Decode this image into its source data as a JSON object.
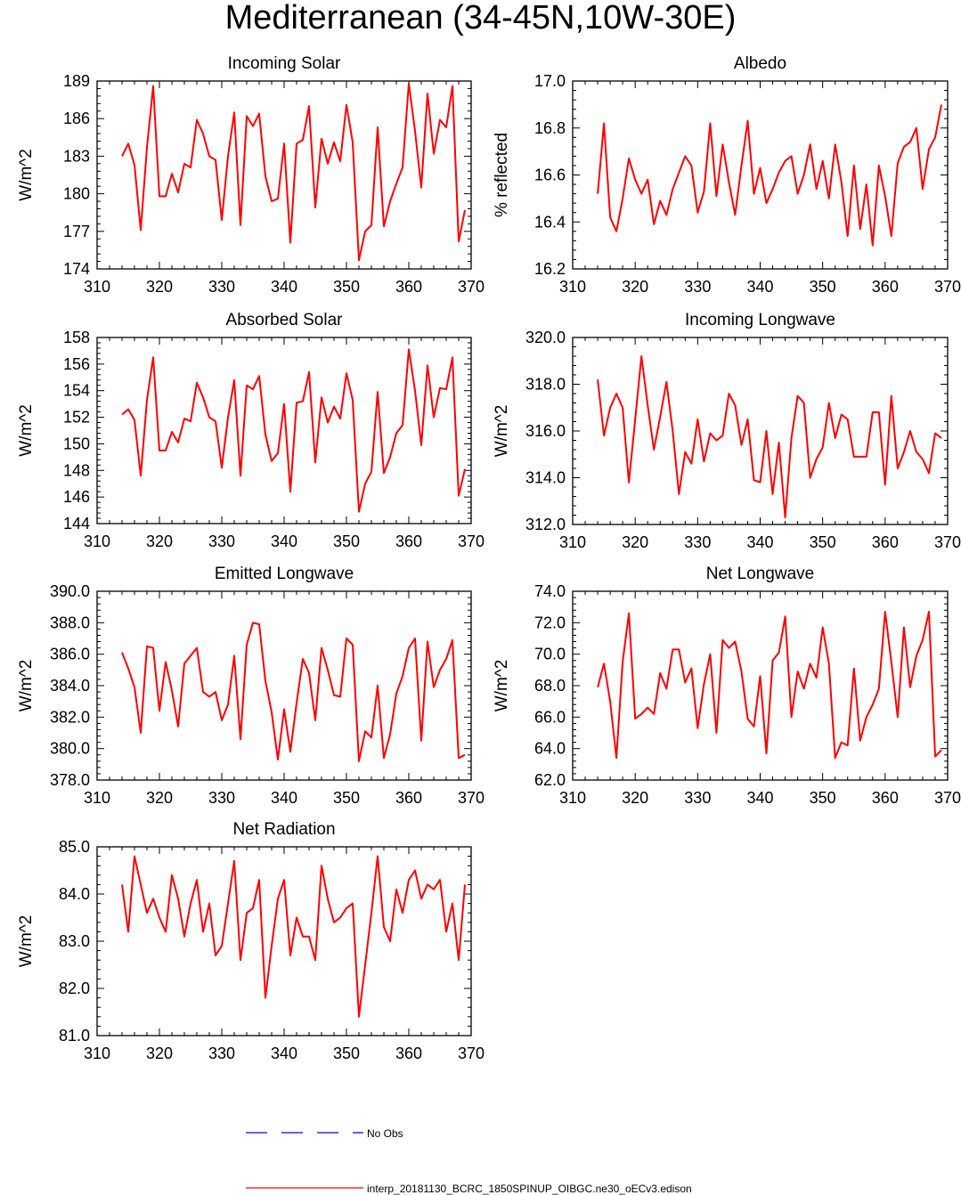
{
  "title": "Mediterranean (34-45N,10W-30E)",
  "colors": {
    "model": "#ff0000",
    "obs": "#0000ff",
    "axis": "#000000"
  },
  "legend": {
    "obs_label": "No Obs",
    "model_label": "interp_20181130_BCRC_1850SPINUP_OIBGC.ne30_oECv3.edison"
  },
  "chart_data": [
    {
      "type": "line",
      "title": "Incoming Solar",
      "xlabel": "",
      "ylabel": "W/m^2",
      "xlim": [
        310,
        370
      ],
      "ylim": [
        174,
        189
      ],
      "xticks": [
        310,
        320,
        330,
        340,
        350,
        360,
        370
      ],
      "xtick_labels": [
        "310",
        "320",
        "330",
        "340",
        "350",
        "360",
        "370"
      ],
      "yticks": [
        174,
        177,
        180,
        183,
        186,
        189
      ],
      "ytick_labels": [
        "174",
        "177",
        "180",
        "183",
        "186",
        "189"
      ],
      "series": [
        {
          "x_start": 314,
          "x_step": 1,
          "values": [
            183.0,
            184.0,
            182.3,
            177.1,
            183.7,
            188.6,
            179.8,
            179.8,
            181.6,
            180.1,
            182.4,
            182.1,
            185.9,
            184.8,
            183.0,
            182.7,
            177.9,
            183.0,
            186.5,
            177.5,
            186.2,
            185.4,
            186.4,
            181.4,
            179.4,
            179.6,
            184.0,
            176.1,
            184.0,
            184.3,
            187.0,
            178.9,
            184.4,
            182.4,
            184.1,
            182.6,
            187.1,
            184.1,
            174.7,
            177.0,
            177.5,
            185.3,
            177.4,
            179.4,
            180.8,
            182.1,
            188.8,
            185.0,
            180.5,
            188.0,
            183.2,
            185.9,
            185.3,
            188.6,
            176.2,
            178.7
          ]
        }
      ]
    },
    {
      "type": "line",
      "title": "Albedo",
      "xlabel": "",
      "ylabel": "% reflected",
      "xlim": [
        310,
        370
      ],
      "ylim": [
        16.2,
        17.0
      ],
      "xticks": [
        310,
        320,
        330,
        340,
        350,
        360,
        370
      ],
      "xtick_labels": [
        "310",
        "320",
        "330",
        "340",
        "350",
        "360",
        "370"
      ],
      "yticks": [
        16.2,
        16.4,
        16.6,
        16.8,
        17.0
      ],
      "ytick_labels": [
        "16.2",
        "16.4",
        "16.6",
        "16.8",
        "17.0"
      ],
      "series": [
        {
          "x_start": 314,
          "x_step": 1,
          "values": [
            16.52,
            16.82,
            16.42,
            16.36,
            16.5,
            16.67,
            16.58,
            16.52,
            16.58,
            16.39,
            16.49,
            16.43,
            16.54,
            16.61,
            16.68,
            16.64,
            16.44,
            16.53,
            16.82,
            16.51,
            16.73,
            16.57,
            16.43,
            16.64,
            16.83,
            16.52,
            16.63,
            16.48,
            16.54,
            16.61,
            16.66,
            16.68,
            16.52,
            16.6,
            16.73,
            16.54,
            16.66,
            16.5,
            16.73,
            16.57,
            16.34,
            16.64,
            16.37,
            16.56,
            16.3,
            16.64,
            16.51,
            16.34,
            16.65,
            16.72,
            16.74,
            16.8,
            16.54,
            16.71,
            16.76,
            16.9
          ]
        }
      ]
    },
    {
      "type": "line",
      "title": "Absorbed Solar",
      "xlabel": "",
      "ylabel": "W/m^2",
      "xlim": [
        310,
        370
      ],
      "ylim": [
        144,
        158
      ],
      "xticks": [
        310,
        320,
        330,
        340,
        350,
        360,
        370
      ],
      "xtick_labels": [
        "310",
        "320",
        "330",
        "340",
        "350",
        "360",
        "370"
      ],
      "yticks": [
        144,
        146,
        148,
        150,
        152,
        154,
        156,
        158
      ],
      "ytick_labels": [
        "144",
        "146",
        "148",
        "150",
        "152",
        "154",
        "156",
        "158"
      ],
      "series": [
        {
          "x_start": 314,
          "x_step": 1,
          "values": [
            152.2,
            152.6,
            151.8,
            147.6,
            153.3,
            156.5,
            149.5,
            149.5,
            150.9,
            150.1,
            151.9,
            151.7,
            154.6,
            153.5,
            152.0,
            151.7,
            148.2,
            152.0,
            154.8,
            147.6,
            154.4,
            154.1,
            155.1,
            150.7,
            148.7,
            149.3,
            153.0,
            146.4,
            153.1,
            153.2,
            155.4,
            148.6,
            153.5,
            151.6,
            152.8,
            151.9,
            155.3,
            153.3,
            144.9,
            147.0,
            147.9,
            153.9,
            147.8,
            149.0,
            150.8,
            151.4,
            157.1,
            154.0,
            149.9,
            155.9,
            152.0,
            154.2,
            154.1,
            156.5,
            146.1,
            148.1
          ]
        }
      ]
    },
    {
      "type": "line",
      "title": "Incoming Longwave",
      "xlabel": "",
      "ylabel": "W/m^2",
      "xlim": [
        310,
        370
      ],
      "ylim": [
        312.0,
        320.0
      ],
      "xticks": [
        310,
        320,
        330,
        340,
        350,
        360,
        370
      ],
      "xtick_labels": [
        "310",
        "320",
        "330",
        "340",
        "350",
        "360",
        "370"
      ],
      "yticks": [
        312,
        314,
        316,
        318,
        320
      ],
      "ytick_labels": [
        "312.0",
        "314.0",
        "316.0",
        "318.0",
        "320.0"
      ],
      "series": [
        {
          "x_start": 314,
          "x_step": 1,
          "values": [
            318.2,
            315.8,
            317.0,
            317.6,
            317.0,
            313.8,
            316.5,
            319.2,
            317.1,
            315.2,
            316.6,
            318.1,
            316.0,
            313.3,
            315.1,
            314.6,
            316.5,
            314.7,
            315.9,
            315.6,
            315.8,
            317.6,
            317.1,
            315.4,
            316.5,
            313.9,
            313.8,
            316.0,
            313.3,
            315.5,
            312.3,
            315.7,
            317.5,
            317.2,
            314.0,
            314.8,
            315.3,
            317.2,
            315.7,
            316.7,
            316.5,
            314.9,
            314.9,
            314.9,
            316.8,
            316.8,
            313.7,
            317.5,
            314.4,
            315.1,
            316.0,
            315.1,
            314.8,
            314.2,
            315.9,
            315.7
          ]
        }
      ]
    },
    {
      "type": "line",
      "title": "Emitted Longwave",
      "xlabel": "",
      "ylabel": "W/m^2",
      "xlim": [
        310,
        370
      ],
      "ylim": [
        378.0,
        390.0
      ],
      "xticks": [
        310,
        320,
        330,
        340,
        350,
        360,
        370
      ],
      "xtick_labels": [
        "310",
        "320",
        "330",
        "340",
        "350",
        "360",
        "370"
      ],
      "yticks": [
        378,
        380,
        382,
        384,
        386,
        388,
        390
      ],
      "ytick_labels": [
        "378.0",
        "380.0",
        "382.0",
        "384.0",
        "386.0",
        "388.0",
        "390.0"
      ],
      "series": [
        {
          "x_start": 314,
          "x_step": 1,
          "values": [
            386.1,
            385.1,
            383.9,
            381.0,
            386.5,
            386.4,
            382.4,
            385.5,
            383.7,
            381.4,
            385.4,
            385.9,
            386.4,
            383.6,
            383.3,
            383.6,
            381.8,
            382.8,
            385.9,
            380.6,
            386.6,
            388.0,
            387.9,
            384.3,
            382.3,
            379.3,
            382.5,
            379.8,
            382.9,
            385.7,
            384.8,
            381.8,
            386.4,
            385.0,
            383.4,
            383.3,
            387.0,
            386.6,
            379.2,
            381.1,
            380.7,
            384.0,
            379.4,
            380.9,
            383.5,
            384.6,
            386.4,
            387.0,
            380.5,
            386.8,
            383.9,
            385.0,
            385.7,
            386.9,
            379.4,
            379.6
          ]
        }
      ]
    },
    {
      "type": "line",
      "title": "Net Longwave",
      "xlabel": "",
      "ylabel": "W/m^2",
      "xlim": [
        310,
        370
      ],
      "ylim": [
        62.0,
        74.0
      ],
      "xticks": [
        310,
        320,
        330,
        340,
        350,
        360,
        370
      ],
      "xtick_labels": [
        "310",
        "320",
        "330",
        "340",
        "350",
        "360",
        "370"
      ],
      "yticks": [
        62,
        64,
        66,
        68,
        70,
        72,
        74
      ],
      "ytick_labels": [
        "62.0",
        "64.0",
        "66.0",
        "68.0",
        "70.0",
        "72.0",
        "74.0"
      ],
      "series": [
        {
          "x_start": 314,
          "x_step": 1,
          "values": [
            67.9,
            69.4,
            67.0,
            63.4,
            69.5,
            72.6,
            65.9,
            66.2,
            66.6,
            66.2,
            68.8,
            67.8,
            70.3,
            70.3,
            68.2,
            69.1,
            65.3,
            68.1,
            70.0,
            65.0,
            70.9,
            70.4,
            70.8,
            68.9,
            65.9,
            65.4,
            68.6,
            63.7,
            69.6,
            70.1,
            72.4,
            66.0,
            68.9,
            67.8,
            69.4,
            68.5,
            71.7,
            69.4,
            63.4,
            64.4,
            64.2,
            69.1,
            64.5,
            66.0,
            66.8,
            67.8,
            72.7,
            69.5,
            66.0,
            71.7,
            67.9,
            69.9,
            70.9,
            72.7,
            63.5,
            63.9
          ]
        }
      ]
    },
    {
      "type": "line",
      "title": "Net Radiation",
      "xlabel": "",
      "ylabel": "W/m^2",
      "xlim": [
        310,
        370
      ],
      "ylim": [
        81.0,
        85.0
      ],
      "xticks": [
        310,
        320,
        330,
        340,
        350,
        360,
        370
      ],
      "xtick_labels": [
        "310",
        "320",
        "330",
        "340",
        "350",
        "360",
        "370"
      ],
      "yticks": [
        81,
        82,
        83,
        84,
        85
      ],
      "ytick_labels": [
        "81.0",
        "82.0",
        "83.0",
        "84.0",
        "85.0"
      ],
      "series": [
        {
          "x_start": 314,
          "x_step": 1,
          "values": [
            84.2,
            83.2,
            84.8,
            84.2,
            83.6,
            83.9,
            83.5,
            83.2,
            84.4,
            83.9,
            83.1,
            83.8,
            84.3,
            83.2,
            83.8,
            82.7,
            82.9,
            83.8,
            84.7,
            82.6,
            83.6,
            83.7,
            84.3,
            81.8,
            82.9,
            83.9,
            84.3,
            82.7,
            83.5,
            83.1,
            83.1,
            82.6,
            84.6,
            83.9,
            83.4,
            83.5,
            83.7,
            83.8,
            81.4,
            82.5,
            83.6,
            84.8,
            83.3,
            83.0,
            84.1,
            83.6,
            84.3,
            84.5,
            83.9,
            84.2,
            84.1,
            84.3,
            83.2,
            83.8,
            82.6,
            84.2
          ]
        }
      ]
    }
  ]
}
